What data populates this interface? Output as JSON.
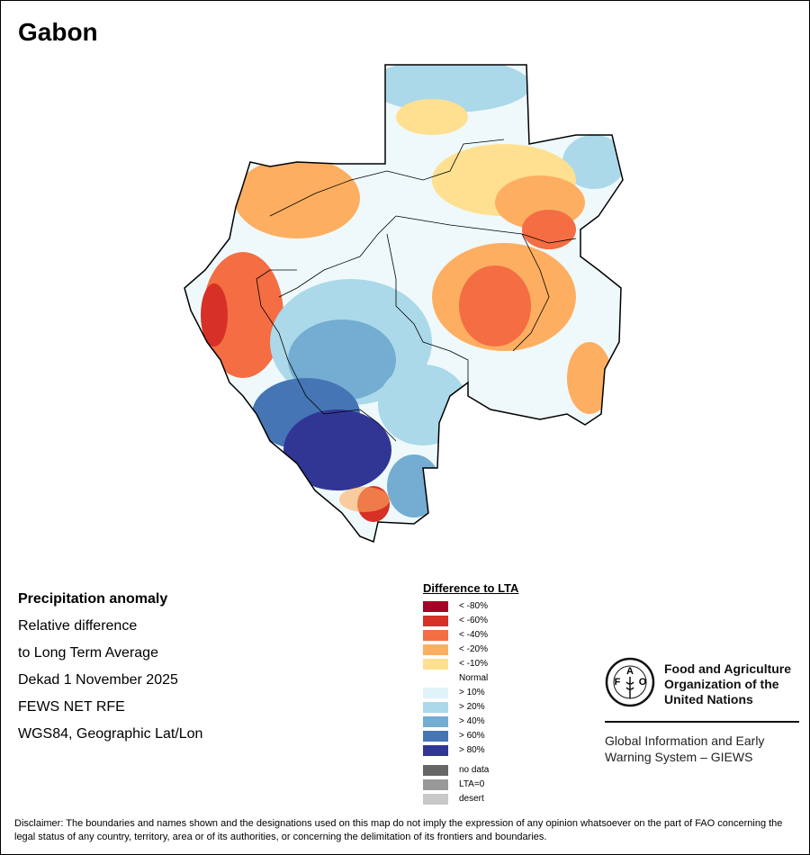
{
  "title": "Gabon",
  "info": {
    "heading": "Precipitation anomaly",
    "line1": "Relative difference",
    "line2": "to Long Term Average",
    "period": "Dekad 1 November 2025",
    "source": "FEWS NET RFE",
    "projection": "WGS84, Geographic Lat/Lon"
  },
  "legend": {
    "title": "Difference to LTA",
    "items": [
      {
        "label": "< -80%",
        "color": "#a50026"
      },
      {
        "label": "< -60%",
        "color": "#d73027"
      },
      {
        "label": "< -40%",
        "color": "#f46d43"
      },
      {
        "label": "< -20%",
        "color": "#fdae61"
      },
      {
        "label": "< -10%",
        "color": "#fee090"
      },
      {
        "label": "Normal",
        "color": "#ffffff"
      },
      {
        "label": "> 10%",
        "color": "#e0f3f8"
      },
      {
        "label": "> 20%",
        "color": "#abd9e9"
      },
      {
        "label": "> 40%",
        "color": "#74add1"
      },
      {
        "label": "> 60%",
        "color": "#4575b4"
      },
      {
        "label": "> 80%",
        "color": "#313695"
      }
    ],
    "extra": [
      {
        "label": "no data",
        "color": "#666666"
      },
      {
        "label": "LTA=0",
        "color": "#999999"
      },
      {
        "label": "desert",
        "color": "#c8c8c8"
      }
    ]
  },
  "fao": {
    "logo_text": "FAO FIAT PANIS",
    "name_line1": "Food and Agriculture",
    "name_line2": "Organization of the",
    "name_line3": "United Nations",
    "giews_line1": "Global Information and Early",
    "giews_line2": "Warning System – GIEWS"
  },
  "disclaimer": "Disclaimer: The boundaries and names shown and the designations used on this map do not imply the expression of any opinion whatsoever on the part of FAO concerning the legal status of any country, territory, area or of its authorities, or concerning the delimitation of its frontiers and boundaries."
}
